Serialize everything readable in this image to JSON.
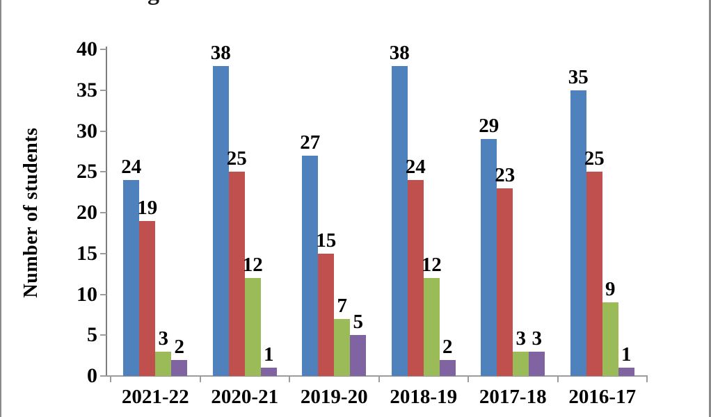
{
  "frame": {
    "background": "#ffffff",
    "border_color": "#8a8a8a"
  },
  "title_fragment": "g",
  "chart_data": {
    "type": "bar",
    "title": "",
    "xlabel": "",
    "ylabel": "Number of students",
    "categories": [
      "2021-22",
      "2020-21",
      "2019-20",
      "2018-19",
      "2017-18",
      "2016-17"
    ],
    "series": [
      {
        "name": "blue",
        "color": "#4F81BD",
        "values": [
          24,
          38,
          27,
          38,
          29,
          35
        ]
      },
      {
        "name": "red",
        "color": "#C0504D",
        "values": [
          19,
          25,
          15,
          24,
          23,
          25
        ]
      },
      {
        "name": "green",
        "color": "#9BBB59",
        "values": [
          3,
          12,
          7,
          12,
          3,
          9
        ]
      },
      {
        "name": "purple",
        "color": "#8064A2",
        "values": [
          2,
          1,
          5,
          2,
          3,
          1
        ]
      }
    ],
    "ylim": [
      0,
      40
    ],
    "yticks": [
      0,
      5,
      10,
      15,
      20,
      25,
      30,
      35,
      40
    ],
    "grid": false,
    "legend": "none",
    "data_labels": true
  }
}
